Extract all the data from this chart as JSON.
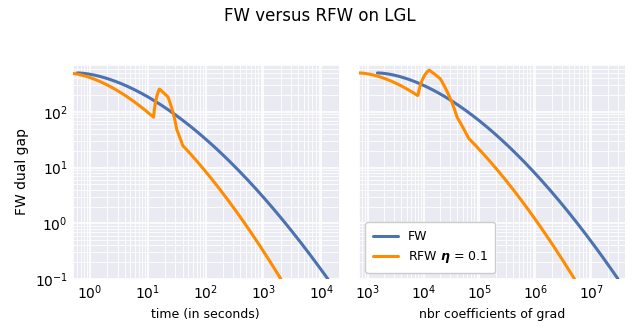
{
  "title": "FW versus RFW on LGL",
  "ylabel": "FW dual gap",
  "xlabel_left": "time (in seconds)",
  "xlabel_right": "nbr coefficients of grad",
  "fw_color": "#4C72B0",
  "rfw_color": "#FF8C00",
  "fw_linewidth": 2.2,
  "rfw_linewidth": 2.2,
  "legend_fw": "FW",
  "legend_rfw": "RFW $\\boldsymbol{\\eta}$ = 0.1",
  "ylim": [
    0.1,
    700
  ],
  "xlim_left": [
    0.5,
    20000
  ],
  "xlim_right": [
    700,
    40000000.0
  ],
  "background_color": "#eaeaf2"
}
